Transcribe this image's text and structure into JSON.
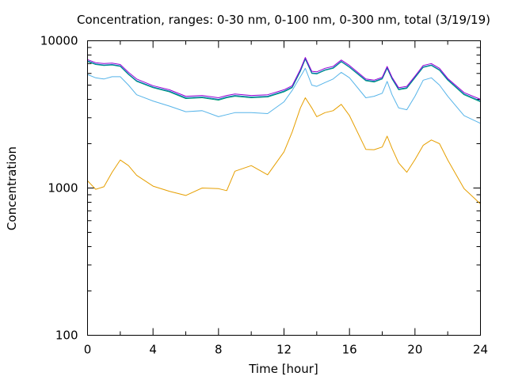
{
  "chart_data": {
    "type": "line",
    "title": "Concentration, ranges: 0-30 nm, 0-100 nm, 0-300 nm, total (3/19/19)",
    "xlabel": "Time [hour]",
    "ylabel": "Concentration",
    "xlim": [
      0,
      24
    ],
    "ylim": [
      100,
      10000
    ],
    "y_scale": "log",
    "grid": false,
    "legend": "none",
    "x_ticks": [
      0,
      4,
      8,
      12,
      16,
      20,
      24
    ],
    "x_tick_labels": [
      "0",
      "4",
      "8",
      "12",
      "16",
      "20",
      "24"
    ],
    "y_ticks": [
      100,
      1000,
      10000
    ],
    "y_tick_labels": [
      "100",
      "1000",
      "10000"
    ],
    "x": [
      0,
      0.5,
      1,
      1.5,
      2,
      2.5,
      3,
      4,
      5,
      6,
      7,
      8,
      8.5,
      9,
      10,
      11,
      12,
      12.5,
      13,
      13.3,
      13.7,
      14,
      14.5,
      15,
      15.5,
      16,
      17,
      17.5,
      18,
      18.3,
      18.6,
      19,
      19.5,
      20,
      20.5,
      21,
      21.5,
      22,
      23,
      24
    ],
    "series": [
      {
        "color": "#e69f00",
        "values": [
          1120,
          980,
          1020,
          1280,
          1550,
          1420,
          1220,
          1030,
          950,
          890,
          1000,
          990,
          960,
          1300,
          1420,
          1230,
          1760,
          2400,
          3500,
          4100,
          3500,
          3050,
          3250,
          3350,
          3700,
          3100,
          1830,
          1820,
          1900,
          2250,
          1860,
          1480,
          1280,
          1560,
          1950,
          2120,
          2000,
          1550,
          990,
          780
        ]
      },
      {
        "color": "#56b4e9",
        "values": [
          5900,
          5600,
          5500,
          5700,
          5700,
          5000,
          4300,
          3900,
          3600,
          3300,
          3350,
          3050,
          3150,
          3250,
          3250,
          3200,
          3850,
          4600,
          5700,
          6500,
          5000,
          4900,
          5200,
          5500,
          6100,
          5600,
          4100,
          4200,
          4400,
          5300,
          4300,
          3500,
          3400,
          4200,
          5400,
          5600,
          5000,
          4200,
          3100,
          2750
        ]
      },
      {
        "color": "#009e73",
        "values": [
          7250,
          6900,
          6800,
          6850,
          6700,
          5900,
          5300,
          4800,
          4500,
          4050,
          4100,
          3950,
          4100,
          4200,
          4100,
          4150,
          4500,
          4800,
          6200,
          7500,
          6000,
          5950,
          6300,
          6500,
          7200,
          6600,
          5350,
          5250,
          5500,
          6500,
          5500,
          4650,
          4750,
          5600,
          6600,
          6800,
          6300,
          5400,
          4300,
          3850
        ]
      },
      {
        "color": "#0072b2",
        "values": [
          7300,
          6950,
          6850,
          6900,
          6750,
          5950,
          5350,
          4850,
          4550,
          4100,
          4150,
          4000,
          4150,
          4250,
          4150,
          4200,
          4550,
          4850,
          6250,
          7550,
          6050,
          6000,
          6350,
          6550,
          7250,
          6650,
          5400,
          5300,
          5550,
          6550,
          5550,
          4700,
          4800,
          5650,
          6650,
          6850,
          6350,
          5450,
          4350,
          3900
        ]
      },
      {
        "color": "#9400d3",
        "values": [
          7450,
          7100,
          7000,
          7050,
          6900,
          6100,
          5500,
          4950,
          4650,
          4200,
          4250,
          4100,
          4250,
          4350,
          4250,
          4300,
          4650,
          4950,
          6400,
          7700,
          6200,
          6150,
          6500,
          6700,
          7400,
          6800,
          5500,
          5400,
          5650,
          6700,
          5650,
          4800,
          4900,
          5750,
          6800,
          7000,
          6500,
          5550,
          4450,
          4000
        ]
      }
    ]
  }
}
